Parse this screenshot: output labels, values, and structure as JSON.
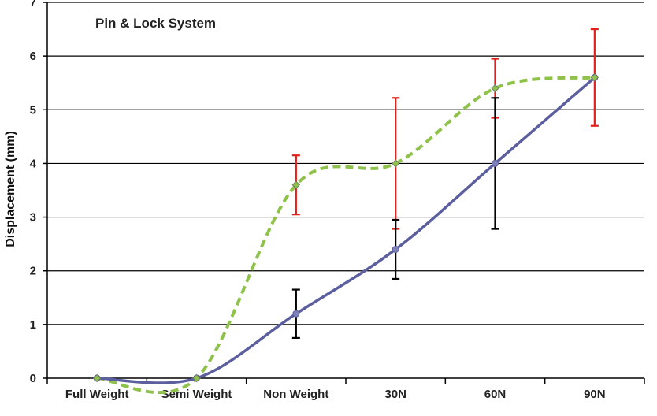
{
  "chart_data": {
    "type": "line",
    "title": "Pin & Lock System",
    "ylabel": "Displacement (mm)",
    "xlabel": "",
    "categories": [
      "Full Weight",
      "Semi Weight",
      "Non Weight",
      "30N",
      "60N",
      "90N"
    ],
    "ylim": [
      0,
      7
    ],
    "yticks": [
      0,
      1,
      2,
      3,
      4,
      5,
      6,
      7
    ],
    "grid": "horizontal",
    "series": [
      {
        "style": "solid",
        "color": "#5c5f9e",
        "marker_color": "#7e82b8",
        "values": [
          0,
          0,
          1.2,
          2.4,
          4.0,
          5.6
        ],
        "error_color": "#000000",
        "error_low": [
          null,
          null,
          0.75,
          1.85,
          2.78,
          null
        ],
        "error_high": [
          null,
          null,
          1.65,
          2.95,
          5.22,
          null
        ]
      },
      {
        "style": "dashed",
        "color": "#8fc24a",
        "marker_color": "#8fc24a",
        "values": [
          0,
          0,
          3.6,
          4.0,
          5.4,
          5.6
        ],
        "error_color": "#e0201a",
        "error_low": [
          null,
          null,
          3.05,
          2.78,
          4.85,
          4.7
        ],
        "error_high": [
          null,
          null,
          4.15,
          5.22,
          5.95,
          6.5
        ]
      }
    ]
  }
}
